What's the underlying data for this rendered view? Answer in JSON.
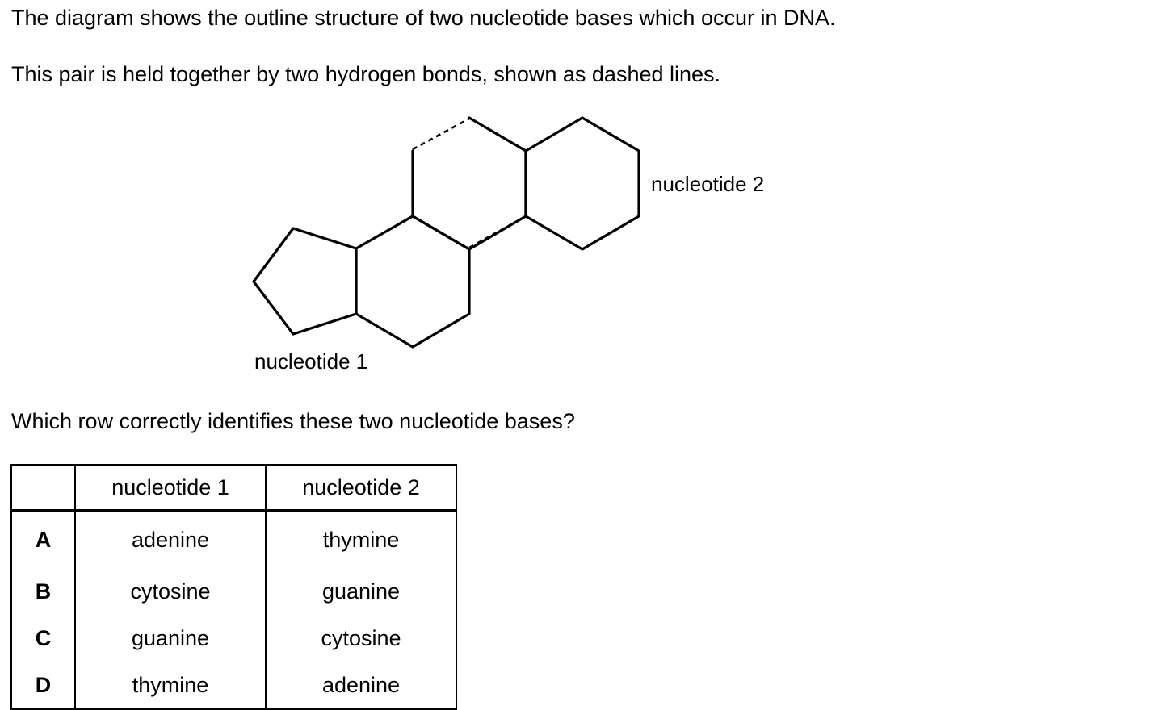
{
  "intro": {
    "line1": "The diagram shows the outline structure of two nucleotide bases which occur in DNA.",
    "line2": "This pair is held together by two hydrogen bonds, shown as dashed lines."
  },
  "diagram": {
    "label_nucleotide_1": "nucleotide 1",
    "label_nucleotide_2": "nucleotide 2"
  },
  "question": "Which row correctly identifies these two nucleotide bases?",
  "table": {
    "headers": [
      "",
      "nucleotide 1",
      "nucleotide 2"
    ],
    "rows": [
      {
        "letter": "A",
        "nucleotide_1": "adenine",
        "nucleotide_2": "thymine"
      },
      {
        "letter": "B",
        "nucleotide_1": "cytosine",
        "nucleotide_2": "guanine"
      },
      {
        "letter": "C",
        "nucleotide_1": "guanine",
        "nucleotide_2": "cytosine"
      },
      {
        "letter": "D",
        "nucleotide_1": "thymine",
        "nucleotide_2": "adenine"
      }
    ]
  }
}
